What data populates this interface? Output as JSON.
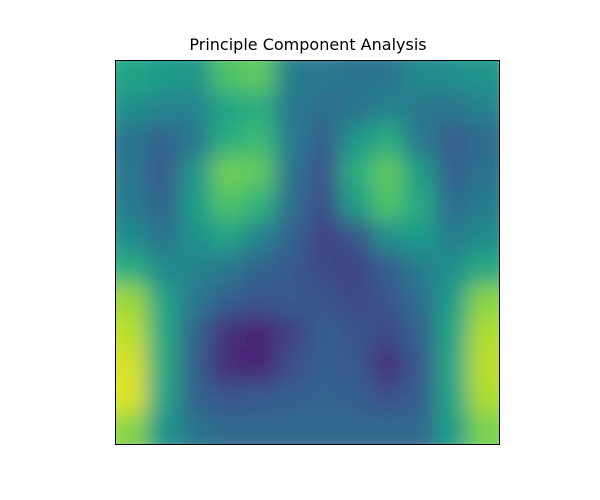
{
  "figure": {
    "title": "Principle Component Analysis"
  },
  "chart_data": {
    "type": "heatmap",
    "title": "Principle Component Analysis",
    "xlabel": "",
    "ylabel": "",
    "axis_ticks_visible": false,
    "colormap": "viridis",
    "colormap_stops": [
      "#440154",
      "#482878",
      "#3e4a89",
      "#31688e",
      "#26828e",
      "#1f9e89",
      "#35b779",
      "#6ece58",
      "#b5de2b",
      "#fde725"
    ],
    "value_range": [
      0,
      1
    ],
    "grid_shape": [
      12,
      12
    ],
    "values": [
      [
        0.58,
        0.55,
        0.52,
        0.72,
        0.75,
        0.42,
        0.4,
        0.38,
        0.38,
        0.48,
        0.5,
        0.52
      ],
      [
        0.5,
        0.45,
        0.45,
        0.58,
        0.62,
        0.4,
        0.36,
        0.38,
        0.45,
        0.4,
        0.38,
        0.45
      ],
      [
        0.38,
        0.32,
        0.4,
        0.62,
        0.68,
        0.42,
        0.3,
        0.52,
        0.62,
        0.4,
        0.3,
        0.35
      ],
      [
        0.4,
        0.28,
        0.52,
        0.78,
        0.75,
        0.38,
        0.26,
        0.62,
        0.75,
        0.55,
        0.3,
        0.38
      ],
      [
        0.42,
        0.32,
        0.55,
        0.72,
        0.65,
        0.36,
        0.24,
        0.55,
        0.72,
        0.6,
        0.35,
        0.42
      ],
      [
        0.48,
        0.38,
        0.5,
        0.58,
        0.45,
        0.32,
        0.2,
        0.26,
        0.5,
        0.55,
        0.42,
        0.48
      ],
      [
        0.62,
        0.48,
        0.45,
        0.4,
        0.32,
        0.28,
        0.22,
        0.2,
        0.3,
        0.42,
        0.5,
        0.6
      ],
      [
        0.85,
        0.58,
        0.4,
        0.3,
        0.26,
        0.28,
        0.26,
        0.22,
        0.26,
        0.36,
        0.55,
        0.82
      ],
      [
        0.9,
        0.6,
        0.32,
        0.14,
        0.1,
        0.2,
        0.3,
        0.26,
        0.22,
        0.32,
        0.58,
        0.88
      ],
      [
        0.94,
        0.6,
        0.3,
        0.12,
        0.1,
        0.24,
        0.3,
        0.28,
        0.14,
        0.28,
        0.6,
        0.9
      ],
      [
        0.95,
        0.58,
        0.32,
        0.26,
        0.28,
        0.3,
        0.32,
        0.3,
        0.24,
        0.3,
        0.58,
        0.88
      ],
      [
        0.82,
        0.52,
        0.38,
        0.34,
        0.34,
        0.34,
        0.34,
        0.34,
        0.34,
        0.34,
        0.55,
        0.8
      ]
    ]
  }
}
